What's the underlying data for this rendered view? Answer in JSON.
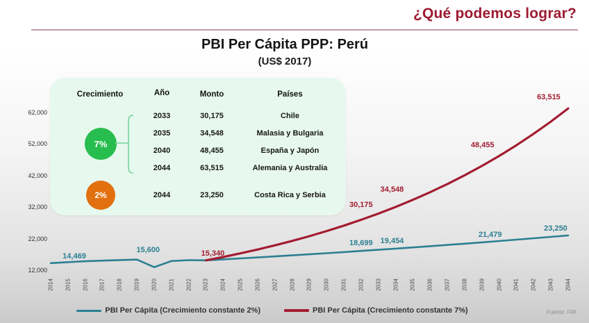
{
  "header": {
    "question": "¿Qué podemos lograr?"
  },
  "title": {
    "main": "PBI Per Cápita PPP: Perú",
    "subtitle": "(US$ 2017)"
  },
  "info_table": {
    "headers": {
      "crecimiento": "Crecimiento",
      "ano": "Año",
      "monto": "Monto",
      "paises": "Países"
    },
    "growth_7": {
      "rate": "7%",
      "rows": [
        {
          "year": "2033",
          "amount": "30,175",
          "countries": "Chile"
        },
        {
          "year": "2035",
          "amount": "34,548",
          "countries": "Malasia y Bulgaria"
        },
        {
          "year": "2040",
          "amount": "48,455",
          "countries": "España y Japón"
        },
        {
          "year": "2044",
          "amount": "63,515",
          "countries": "Alemania y Australia"
        }
      ]
    },
    "growth_2": {
      "rate": "2%",
      "rows": [
        {
          "year": "2044",
          "amount": "23,250",
          "countries": "Costa Rica y Serbia"
        }
      ]
    }
  },
  "chart_data": {
    "type": "line",
    "title": "PBI Per Cápita PPP: Perú (US$ 2017)",
    "xlabel": "",
    "ylabel": "",
    "ylim": [
      12000,
      62000
    ],
    "grid": false,
    "legend_position": "bottom",
    "x": [
      2014,
      2015,
      2016,
      2017,
      2018,
      2019,
      2020,
      2021,
      2022,
      2023,
      2024,
      2025,
      2026,
      2027,
      2028,
      2029,
      2030,
      2031,
      2032,
      2033,
      2034,
      2035,
      2036,
      2037,
      2038,
      2039,
      2040,
      2041,
      2042,
      2043,
      2044
    ],
    "series": [
      {
        "name": "PBI Per Cápita (Crecimiento constante 2%)",
        "color": "#2b7f92",
        "values": [
          14469,
          14780,
          15060,
          15260,
          15430,
          15600,
          13200,
          15120,
          15420,
          15340,
          15647,
          15960,
          16279,
          16605,
          16937,
          17275,
          17621,
          17973,
          18333,
          18699,
          19073,
          19454,
          19843,
          20240,
          20645,
          21058,
          21479,
          21909,
          22347,
          22794,
          23250
        ]
      },
      {
        "name": "PBI Per Cápita (Crecimiento constante 7%)",
        "color": "#a31c30",
        "values": [
          null,
          null,
          null,
          null,
          null,
          null,
          null,
          null,
          null,
          15340,
          16414,
          17563,
          18792,
          20108,
          21515,
          23021,
          24633,
          26357,
          28202,
          30175,
          32288,
          34548,
          36966,
          39554,
          42323,
          45285,
          48455,
          51847,
          55477,
          59360,
          63515
        ]
      }
    ],
    "y_ticks": [
      {
        "label": "62,000",
        "value": 62000
      },
      {
        "label": "52,000",
        "value": 52000
      },
      {
        "label": "42,000",
        "value": 42000
      },
      {
        "label": "32,000",
        "value": 32000
      },
      {
        "label": "22,000",
        "value": 22000
      },
      {
        "label": "12,000",
        "value": 12000
      }
    ],
    "annotations": [
      {
        "series": 0,
        "year": 2014,
        "label": "14,469"
      },
      {
        "series": 0,
        "year": 2019,
        "label": "15,600"
      },
      {
        "series": 1,
        "year": 2023,
        "label": "15,340"
      },
      {
        "series": 1,
        "year": 2033,
        "label": "30,175"
      },
      {
        "series": 1,
        "year": 2035,
        "label": "34,548"
      },
      {
        "series": 1,
        "year": 2040,
        "label": "48,455"
      },
      {
        "series": 1,
        "year": 2044,
        "label": "63,515"
      },
      {
        "series": 0,
        "year": 2033,
        "label": "18,699"
      },
      {
        "series": 0,
        "year": 2035,
        "label": "19,454"
      },
      {
        "series": 0,
        "year": 2040,
        "label": "21,479"
      },
      {
        "series": 0,
        "year": 2044,
        "label": "23,250"
      }
    ]
  },
  "source": "Fuente: FMI"
}
